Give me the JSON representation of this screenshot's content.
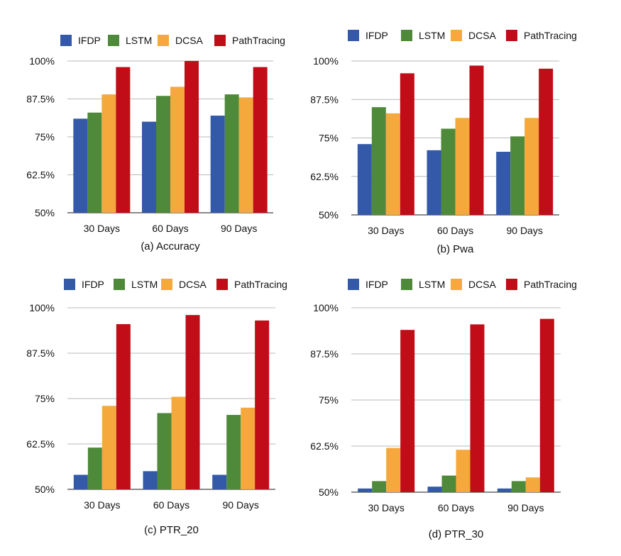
{
  "colors": {
    "IFDP": "#3359a8",
    "LSTM": "#4e8a3a",
    "DCSA": "#f5a93c",
    "PathTracing": "#c00d17",
    "gridline": "#b9b9b9",
    "axis": "#444444"
  },
  "chart_data": [
    {
      "type": "bar",
      "caption": "(a)  Accuracy",
      "legend": [
        "IFDP",
        "LSTM",
        "DCSA",
        "PathTracing"
      ],
      "legend_position": "top",
      "categories": [
        "30 Days",
        "60 Days",
        "90 Days"
      ],
      "yticks": [
        "50%",
        "62.5%",
        "75%",
        "87.5%",
        "100%"
      ],
      "ylim": [
        50,
        100
      ],
      "grid": true,
      "series": [
        {
          "name": "IFDP",
          "values": [
            81,
            80,
            82
          ]
        },
        {
          "name": "LSTM",
          "values": [
            83,
            88.5,
            89
          ]
        },
        {
          "name": "DCSA",
          "values": [
            89,
            91.5,
            88
          ]
        },
        {
          "name": "PathTracing",
          "values": [
            98,
            100,
            98
          ]
        }
      ]
    },
    {
      "type": "bar",
      "caption": "(b)  Pwa",
      "legend": [
        "IFDP",
        "LSTM",
        "DCSA",
        "PathTracing"
      ],
      "legend_position": "top",
      "categories": [
        "30 Days",
        "60 Days",
        "90  Days"
      ],
      "yticks": [
        "50%",
        "62.5%",
        "75%",
        "87.5%",
        "100%"
      ],
      "ylim": [
        50,
        100
      ],
      "grid": true,
      "series": [
        {
          "name": "IFDP",
          "values": [
            73,
            71,
            70.5
          ]
        },
        {
          "name": "LSTM",
          "values": [
            85,
            78,
            75.5
          ]
        },
        {
          "name": "DCSA",
          "values": [
            83,
            81.5,
            81.5
          ]
        },
        {
          "name": "PathTracing",
          "values": [
            96,
            98.5,
            97.5
          ]
        }
      ]
    },
    {
      "type": "bar",
      "caption": "(c)  PTR_20",
      "legend": [
        "IFDP",
        "LSTM",
        "DCSA",
        "PathTracing"
      ],
      "legend_position": "top",
      "categories": [
        "30 Days",
        "60 Days",
        "90  Days"
      ],
      "yticks": [
        "50%",
        "62.5%",
        "75%",
        "87.5%",
        "100%"
      ],
      "ylim": [
        50,
        100
      ],
      "grid": true,
      "series": [
        {
          "name": "IFDP",
          "values": [
            54,
            55,
            54
          ]
        },
        {
          "name": "LSTM",
          "values": [
            61.5,
            71,
            70.5
          ]
        },
        {
          "name": "DCSA",
          "values": [
            73,
            75.5,
            72.5
          ]
        },
        {
          "name": "PathTracing",
          "values": [
            95.5,
            98,
            96.5
          ]
        }
      ]
    },
    {
      "type": "bar",
      "caption": "(d)  PTR_30",
      "legend": [
        "IFDP",
        "LSTM",
        "DCSA",
        "PathTracing"
      ],
      "legend_position": "top",
      "categories": [
        "30 Days",
        "60 Days",
        "90  Days"
      ],
      "yticks": [
        "50%",
        "62.5%",
        "75%",
        "87.5%",
        "100%"
      ],
      "ylim": [
        50,
        100
      ],
      "grid": true,
      "series": [
        {
          "name": "IFDP",
          "values": [
            51,
            51.5,
            51
          ]
        },
        {
          "name": "LSTM",
          "values": [
            53,
            54.5,
            53
          ]
        },
        {
          "name": "DCSA",
          "values": [
            62,
            61.5,
            54
          ]
        },
        {
          "name": "PathTracing",
          "values": [
            94,
            95.5,
            97
          ]
        }
      ]
    }
  ]
}
